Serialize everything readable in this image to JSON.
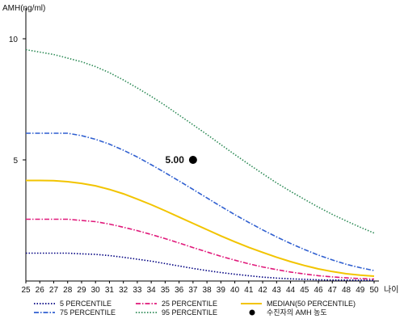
{
  "chart_data": {
    "type": "line",
    "ylabel": "AMH(ng/ml)",
    "xlabel": "나이",
    "x": [
      25,
      26,
      27,
      28,
      29,
      30,
      31,
      32,
      33,
      34,
      35,
      36,
      37,
      38,
      39,
      40,
      41,
      42,
      43,
      44,
      45,
      46,
      47,
      48,
      49,
      50
    ],
    "xlim": [
      25,
      50
    ],
    "ylim": [
      0,
      11
    ],
    "yticks": [
      5,
      10
    ],
    "grid": false,
    "legend_position": "bottom",
    "series": [
      {
        "name": "5 PERCENTILE",
        "color": "#000080",
        "style": "dotted",
        "values": [
          1.15,
          1.15,
          1.15,
          1.15,
          1.12,
          1.1,
          1.05,
          0.98,
          0.9,
          0.82,
          0.72,
          0.62,
          0.52,
          0.43,
          0.35,
          0.28,
          0.22,
          0.16,
          0.12,
          0.09,
          0.07,
          0.05,
          0.04,
          0.04,
          0.03,
          0.03
        ]
      },
      {
        "name": "25 PERCENTILE",
        "color": "#e0187a",
        "style": "dashdot",
        "values": [
          2.55,
          2.55,
          2.55,
          2.55,
          2.5,
          2.45,
          2.35,
          2.22,
          2.08,
          1.92,
          1.75,
          1.57,
          1.38,
          1.2,
          1.02,
          0.86,
          0.71,
          0.58,
          0.47,
          0.37,
          0.29,
          0.22,
          0.17,
          0.13,
          0.1,
          0.08
        ]
      },
      {
        "name": "MEDIAN(50 PERCENTILE)",
        "color": "#f2c400",
        "style": "solid",
        "values": [
          4.15,
          4.15,
          4.14,
          4.1,
          4.03,
          3.93,
          3.78,
          3.6,
          3.38,
          3.15,
          2.9,
          2.64,
          2.38,
          2.12,
          1.86,
          1.62,
          1.39,
          1.18,
          0.98,
          0.8,
          0.64,
          0.5,
          0.39,
          0.3,
          0.24,
          0.2
        ]
      },
      {
        "name": "75 PERCENTILE",
        "color": "#2f5fd0",
        "style": "dashdot",
        "values": [
          6.1,
          6.1,
          6.1,
          6.1,
          6.0,
          5.85,
          5.65,
          5.4,
          5.12,
          4.8,
          4.47,
          4.13,
          3.78,
          3.43,
          3.08,
          2.74,
          2.42,
          2.11,
          1.82,
          1.55,
          1.3,
          1.07,
          0.87,
          0.69,
          0.55,
          0.43
        ]
      },
      {
        "name": "95 PERCENTILE",
        "color": "#2e8b57",
        "style": "dotted",
        "values": [
          9.55,
          9.45,
          9.35,
          9.2,
          9.05,
          8.85,
          8.6,
          8.3,
          7.97,
          7.62,
          7.25,
          6.85,
          6.45,
          6.05,
          5.63,
          5.22,
          4.82,
          4.43,
          4.05,
          3.7,
          3.37,
          3.05,
          2.75,
          2.48,
          2.22,
          1.98
        ]
      }
    ],
    "points": [
      {
        "name": "수진자의 AMH 농도",
        "x": 37,
        "y": 5.0,
        "label": "5.00",
        "color": "#000000"
      }
    ]
  }
}
